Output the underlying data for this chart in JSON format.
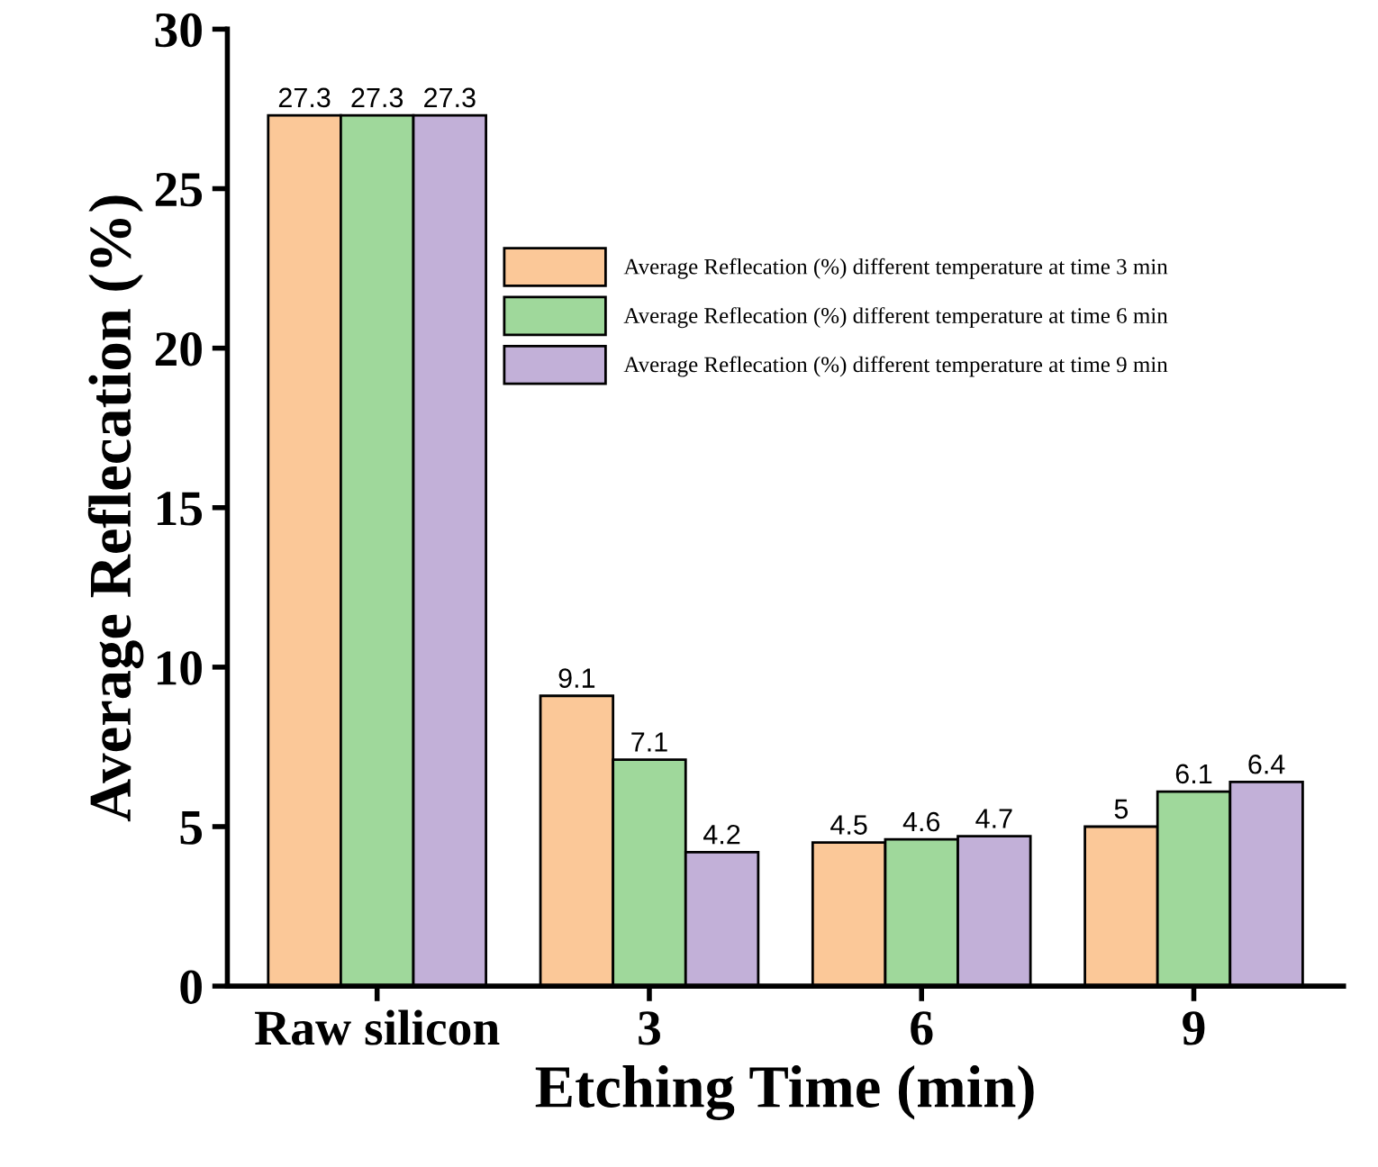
{
  "chart_data": {
    "type": "bar",
    "xlabel": "Etching Time (min)",
    "ylabel": "Average Reflecation (%)",
    "categories": [
      "Raw silicon",
      "3",
      "6",
      "9"
    ],
    "series": [
      {
        "name": "Average Reflecation (%) different temperature at time 3 min",
        "color": "#fbc898",
        "values": [
          27.3,
          9.1,
          4.5,
          5
        ]
      },
      {
        "name": "Average Reflecation (%) different temperature at time 6 min",
        "color": "#9fd89b",
        "values": [
          27.3,
          7.1,
          4.6,
          6.1
        ]
      },
      {
        "name": "Average Reflecation (%) different temperature at time 9 min",
        "color": "#c2b0d8",
        "values": [
          27.3,
          4.2,
          4.7,
          6.4
        ]
      }
    ],
    "ylim": [
      0,
      30
    ],
    "yticks": [
      0,
      5,
      10,
      15,
      20,
      25,
      30
    ],
    "data_labels": true,
    "legend": "top right",
    "grid": false
  }
}
